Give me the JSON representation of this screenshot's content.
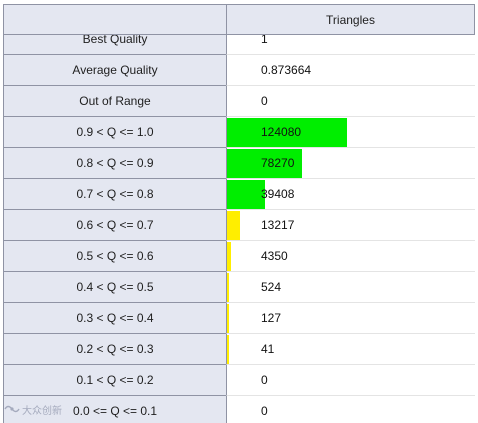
{
  "table": {
    "column_header": "Triangles",
    "max_value": 124080,
    "bar_max_fraction": 0.48,
    "rows": [
      {
        "label": "Best Quality",
        "value": "1",
        "bar": null
      },
      {
        "label": "Average Quality",
        "value": "0.873664",
        "bar": null
      },
      {
        "label": "Out of Range",
        "value": "0",
        "bar": null
      },
      {
        "label": "0.9 < Q <= 1.0",
        "value": "124080",
        "count": 124080,
        "bar": "#00ee00"
      },
      {
        "label": "0.8 < Q <= 0.9",
        "value": "78270",
        "count": 78270,
        "bar": "#00ee00"
      },
      {
        "label": "0.7 < Q <= 0.8",
        "value": "39408",
        "count": 39408,
        "bar": "#00ee00"
      },
      {
        "label": "0.6 < Q <= 0.7",
        "value": "13217",
        "count": 13217,
        "bar": "#ffee00"
      },
      {
        "label": "0.5 < Q <= 0.6",
        "value": "4350",
        "count": 4350,
        "bar": "#ffee00"
      },
      {
        "label": "0.4 < Q <= 0.5",
        "value": "524",
        "count": 524,
        "bar": "#ffee00"
      },
      {
        "label": "0.3 < Q <= 0.4",
        "value": "127",
        "count": 127,
        "bar": "#ffee00"
      },
      {
        "label": "0.2 < Q <= 0.3",
        "value": "41",
        "count": 41,
        "bar": "#ffee00"
      },
      {
        "label": "0.1 < Q <= 0.2",
        "value": "0",
        "count": 0,
        "bar": null
      },
      {
        "label": "0.0 <= Q <= 0.1",
        "value": "0",
        "count": 0,
        "bar": null
      }
    ]
  },
  "watermark": {
    "icon": "watermark-logo-icon",
    "text": "大众创新"
  },
  "colors": {
    "header_bg": "#e4e7f1",
    "grid_line": "#8f93a4",
    "good_bar": "#00ee00",
    "fair_bar": "#ffee00"
  }
}
